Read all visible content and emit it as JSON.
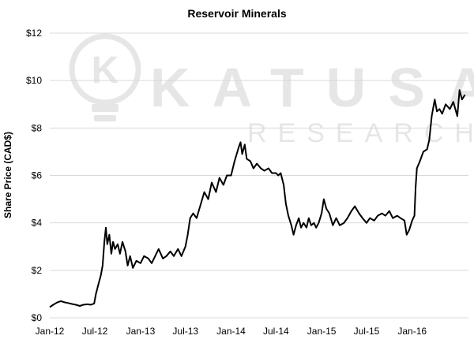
{
  "chart_data": {
    "type": "line",
    "title": "Reservoir Minerals",
    "ylabel": "Share Price (CAD$)",
    "xlabel": "",
    "ylim": [
      0,
      12
    ],
    "y_ticks": [
      0,
      2,
      4,
      6,
      8,
      10,
      12
    ],
    "y_tick_labels": [
      "$0",
      "$2",
      "$4",
      "$6",
      "$8",
      "$10",
      "$12"
    ],
    "x_range": [
      "2012-01-01",
      "2016-08-15"
    ],
    "x_ticks": [
      "2012-01-01",
      "2012-07-01",
      "2013-01-01",
      "2013-07-01",
      "2014-01-01",
      "2014-07-01",
      "2015-01-01",
      "2015-07-01",
      "2016-01-01"
    ],
    "x_tick_labels": [
      "Jan-12",
      "Jul-12",
      "Jan-13",
      "Jul-13",
      "Jan-14",
      "Jul-14",
      "Jan-15",
      "Jul-15",
      "Jan-16"
    ],
    "grid": "horizontal",
    "legend": "none",
    "series": [
      {
        "color": "#000000",
        "points": [
          [
            "2012-01-01",
            0.45
          ],
          [
            "2012-01-15",
            0.55
          ],
          [
            "2012-02-01",
            0.65
          ],
          [
            "2012-02-15",
            0.7
          ],
          [
            "2012-03-01",
            0.65
          ],
          [
            "2012-03-15",
            0.62
          ],
          [
            "2012-04-01",
            0.58
          ],
          [
            "2012-04-15",
            0.55
          ],
          [
            "2012-05-01",
            0.5
          ],
          [
            "2012-05-15",
            0.55
          ],
          [
            "2012-06-01",
            0.57
          ],
          [
            "2012-06-15",
            0.55
          ],
          [
            "2012-06-28",
            0.6
          ],
          [
            "2012-07-05",
            1.0
          ],
          [
            "2012-07-15",
            1.4
          ],
          [
            "2012-07-25",
            1.8
          ],
          [
            "2012-08-01",
            2.2
          ],
          [
            "2012-08-08",
            3.2
          ],
          [
            "2012-08-14",
            3.8
          ],
          [
            "2012-08-20",
            3.1
          ],
          [
            "2012-08-28",
            3.5
          ],
          [
            "2012-09-05",
            2.7
          ],
          [
            "2012-09-12",
            3.2
          ],
          [
            "2012-09-20",
            2.9
          ],
          [
            "2012-10-01",
            3.1
          ],
          [
            "2012-10-10",
            2.7
          ],
          [
            "2012-10-20",
            3.2
          ],
          [
            "2012-11-01",
            2.8
          ],
          [
            "2012-11-10",
            2.2
          ],
          [
            "2012-11-20",
            2.6
          ],
          [
            "2012-12-01",
            2.1
          ],
          [
            "2012-12-15",
            2.4
          ],
          [
            "2013-01-01",
            2.3
          ],
          [
            "2013-01-15",
            2.6
          ],
          [
            "2013-02-01",
            2.5
          ],
          [
            "2013-02-15",
            2.3
          ],
          [
            "2013-03-01",
            2.6
          ],
          [
            "2013-03-15",
            2.9
          ],
          [
            "2013-04-01",
            2.5
          ],
          [
            "2013-04-15",
            2.6
          ],
          [
            "2013-05-01",
            2.8
          ],
          [
            "2013-05-15",
            2.6
          ],
          [
            "2013-06-01",
            2.9
          ],
          [
            "2013-06-15",
            2.6
          ],
          [
            "2013-07-01",
            3.0
          ],
          [
            "2013-07-10",
            3.5
          ],
          [
            "2013-07-20",
            4.2
          ],
          [
            "2013-08-01",
            4.4
          ],
          [
            "2013-08-15",
            4.2
          ],
          [
            "2013-09-01",
            4.8
          ],
          [
            "2013-09-15",
            5.3
          ],
          [
            "2013-10-01",
            5.0
          ],
          [
            "2013-10-15",
            5.7
          ],
          [
            "2013-11-01",
            5.3
          ],
          [
            "2013-11-15",
            5.9
          ],
          [
            "2013-12-01",
            5.6
          ],
          [
            "2013-12-15",
            6.0
          ],
          [
            "2014-01-01",
            6.0
          ],
          [
            "2014-01-15",
            6.6
          ],
          [
            "2014-02-01",
            7.2
          ],
          [
            "2014-02-08",
            7.4
          ],
          [
            "2014-02-15",
            6.9
          ],
          [
            "2014-02-25",
            7.3
          ],
          [
            "2014-03-05",
            6.7
          ],
          [
            "2014-03-20",
            6.6
          ],
          [
            "2014-04-01",
            6.3
          ],
          [
            "2014-04-15",
            6.5
          ],
          [
            "2014-05-01",
            6.3
          ],
          [
            "2014-05-15",
            6.2
          ],
          [
            "2014-06-01",
            6.3
          ],
          [
            "2014-06-15",
            6.1
          ],
          [
            "2014-07-01",
            6.1
          ],
          [
            "2014-07-10",
            6.0
          ],
          [
            "2014-07-20",
            6.1
          ],
          [
            "2014-08-01",
            5.6
          ],
          [
            "2014-08-10",
            4.8
          ],
          [
            "2014-08-20",
            4.3
          ],
          [
            "2014-09-01",
            3.9
          ],
          [
            "2014-09-10",
            3.5
          ],
          [
            "2014-09-20",
            3.9
          ],
          [
            "2014-10-01",
            4.2
          ],
          [
            "2014-10-10",
            3.8
          ],
          [
            "2014-10-20",
            4.0
          ],
          [
            "2014-11-01",
            3.8
          ],
          [
            "2014-11-10",
            4.2
          ],
          [
            "2014-11-20",
            3.9
          ],
          [
            "2014-12-01",
            4.0
          ],
          [
            "2014-12-10",
            3.8
          ],
          [
            "2014-12-20",
            4.0
          ],
          [
            "2015-01-01",
            4.4
          ],
          [
            "2015-01-10",
            5.0
          ],
          [
            "2015-01-20",
            4.6
          ],
          [
            "2015-02-01",
            4.4
          ],
          [
            "2015-02-15",
            3.9
          ],
          [
            "2015-03-01",
            4.2
          ],
          [
            "2015-03-15",
            3.9
          ],
          [
            "2015-04-01",
            4.0
          ],
          [
            "2015-04-15",
            4.2
          ],
          [
            "2015-05-01",
            4.5
          ],
          [
            "2015-05-15",
            4.7
          ],
          [
            "2015-06-01",
            4.4
          ],
          [
            "2015-06-15",
            4.2
          ],
          [
            "2015-07-01",
            4.0
          ],
          [
            "2015-07-15",
            4.2
          ],
          [
            "2015-08-01",
            4.1
          ],
          [
            "2015-08-15",
            4.3
          ],
          [
            "2015-09-01",
            4.4
          ],
          [
            "2015-09-15",
            4.3
          ],
          [
            "2015-10-01",
            4.5
          ],
          [
            "2015-10-15",
            4.2
          ],
          [
            "2015-11-01",
            4.3
          ],
          [
            "2015-11-15",
            4.2
          ],
          [
            "2015-12-01",
            4.1
          ],
          [
            "2015-12-10",
            3.5
          ],
          [
            "2015-12-20",
            3.7
          ],
          [
            "2016-01-01",
            4.1
          ],
          [
            "2016-01-10",
            4.3
          ],
          [
            "2016-01-15",
            5.5
          ],
          [
            "2016-01-20",
            6.3
          ],
          [
            "2016-02-01",
            6.6
          ],
          [
            "2016-02-15",
            7.0
          ],
          [
            "2016-03-01",
            7.1
          ],
          [
            "2016-03-10",
            7.5
          ],
          [
            "2016-03-20",
            8.5
          ],
          [
            "2016-04-01",
            9.2
          ],
          [
            "2016-04-10",
            8.7
          ],
          [
            "2016-04-20",
            8.8
          ],
          [
            "2016-05-01",
            8.6
          ],
          [
            "2016-05-15",
            9.0
          ],
          [
            "2016-06-01",
            8.8
          ],
          [
            "2016-06-15",
            9.1
          ],
          [
            "2016-07-01",
            8.5
          ],
          [
            "2016-07-10",
            9.6
          ],
          [
            "2016-07-20",
            9.2
          ],
          [
            "2016-08-01",
            9.4
          ]
        ]
      }
    ]
  },
  "watermark": {
    "brand": "KATUSA",
    "sub": "RESEARCH",
    "logo_letter": "K",
    "color": "#e6e6e6"
  }
}
